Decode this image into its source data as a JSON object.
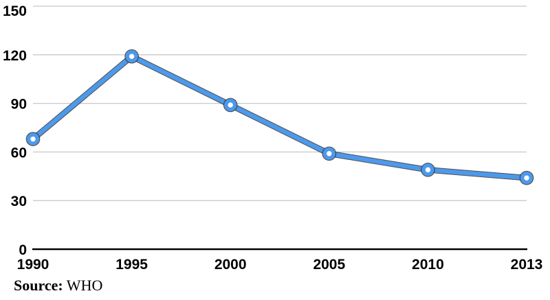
{
  "chart_data": {
    "type": "line",
    "categories": [
      "1990",
      "1995",
      "2000",
      "2005",
      "2010",
      "2013"
    ],
    "series": [
      {
        "name": "value",
        "values": [
          68,
          119,
          89,
          59,
          49,
          44
        ]
      }
    ],
    "title": "",
    "xlabel": "",
    "ylabel": "",
    "ylim": [
      0,
      150
    ],
    "y_ticks": [
      0,
      30,
      60,
      90,
      120,
      150
    ],
    "grid": true,
    "legend": "none",
    "marker_style": "circle-with-white-center",
    "colors": {
      "line": "#4d99eb",
      "line_outline": "#2f2f2f",
      "marker_center": "#ffffff",
      "gridline": "#c8c8c8",
      "axis": "#000000",
      "tick_label": "#000000",
      "background": "#ffffff"
    }
  },
  "footer": {
    "source_label": "Source:",
    "source_value": " WHO"
  }
}
